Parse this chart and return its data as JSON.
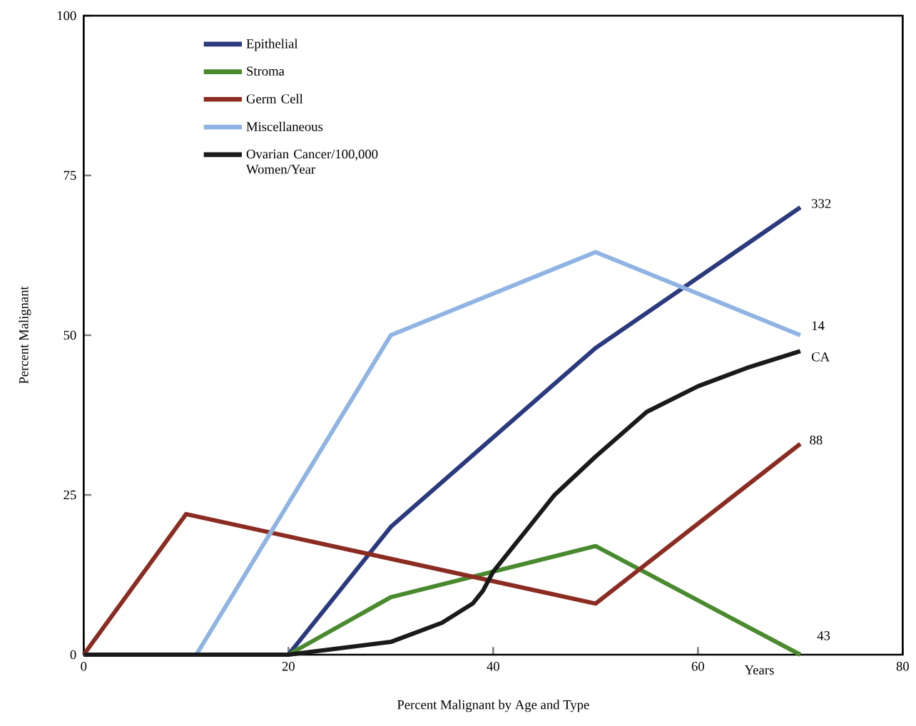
{
  "chart_data": {
    "type": "line",
    "title": "Percent Malignant by Age and Type",
    "xlabel": "Years",
    "ylabel": "Percent Malignant",
    "xlim": [
      0,
      80
    ],
    "ylim": [
      0,
      100
    ],
    "xticks": [
      0,
      20,
      40,
      60,
      80
    ],
    "yticks": [
      0,
      25,
      50,
      75,
      100
    ],
    "legend": "top left",
    "grid": false,
    "marker": "none",
    "line_style": "solid",
    "series": [
      {
        "name": "Epithelial",
        "color": "#2b3a7f",
        "x": [
          0,
          20,
          30,
          50,
          70
        ],
        "values": [
          0,
          0,
          20,
          48,
          70
        ]
      },
      {
        "name": "Stroma",
        "color": "#4a8a2e",
        "x": [
          0,
          20,
          30,
          50,
          70
        ],
        "values": [
          0,
          0,
          9,
          17,
          0
        ]
      },
      {
        "name": "Germ Cell",
        "color": "#8b2c22",
        "x": [
          0,
          10,
          50,
          70
        ],
        "values": [
          0,
          22,
          8,
          33
        ]
      },
      {
        "name": "Miscellaneous",
        "color": "#8fb4e3",
        "x": [
          0,
          11,
          30,
          50,
          70
        ],
        "values": [
          0,
          0,
          50,
          63,
          50
        ]
      },
      {
        "name": "Ovarian Cancer/100,000 Women/Year",
        "color": "#1a1a1a",
        "x": [
          0,
          20,
          25,
          30,
          35,
          38,
          39,
          40,
          43,
          46,
          50,
          55,
          60,
          65,
          70
        ],
        "values": [
          0,
          0,
          1,
          2,
          5,
          8,
          10,
          13,
          19,
          25,
          31,
          38,
          42,
          45,
          47.5
        ]
      }
    ],
    "annotations": [
      "332",
      "14",
      "CA",
      "88",
      "43"
    ]
  }
}
